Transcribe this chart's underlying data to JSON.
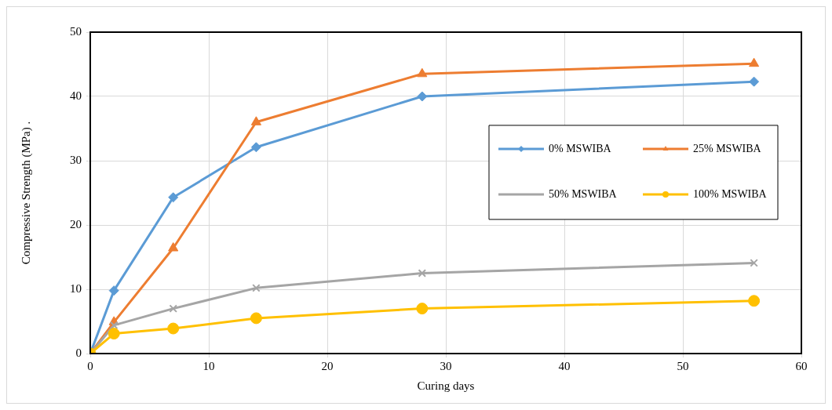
{
  "chart_data": {
    "type": "line",
    "xlabel": "Curing days",
    "ylabel": "Compressive Strength (MPa) .",
    "x": [
      0,
      2,
      7,
      14,
      28,
      56
    ],
    "series": [
      {
        "name": "0% MSWIBA",
        "color": "#5b9bd5",
        "marker": "diamond",
        "values": [
          0,
          9.8,
          24.3,
          32.1,
          40,
          42.3
        ]
      },
      {
        "name": "25% MSWIBA",
        "color": "#ed7d31",
        "marker": "triangle",
        "values": [
          0,
          4.9,
          16.4,
          36,
          43.5,
          45.1
        ]
      },
      {
        "name": "50% MSWIBA",
        "color": "#a5a5a5",
        "marker": "cross",
        "values": [
          0,
          4.4,
          7,
          10.2,
          12.5,
          14.1
        ]
      },
      {
        "name": "100% MSWIBA",
        "color": "#ffc000",
        "marker": "circle",
        "values": [
          0,
          3.1,
          3.9,
          5.5,
          7,
          8.2
        ]
      }
    ],
    "xlim": [
      0,
      60
    ],
    "xticks": [
      0,
      10,
      20,
      30,
      40,
      50,
      60
    ],
    "ylim": [
      0,
      50
    ],
    "yticks": [
      0,
      10,
      20,
      30,
      40,
      50
    ],
    "grid": true,
    "legend": "right"
  }
}
